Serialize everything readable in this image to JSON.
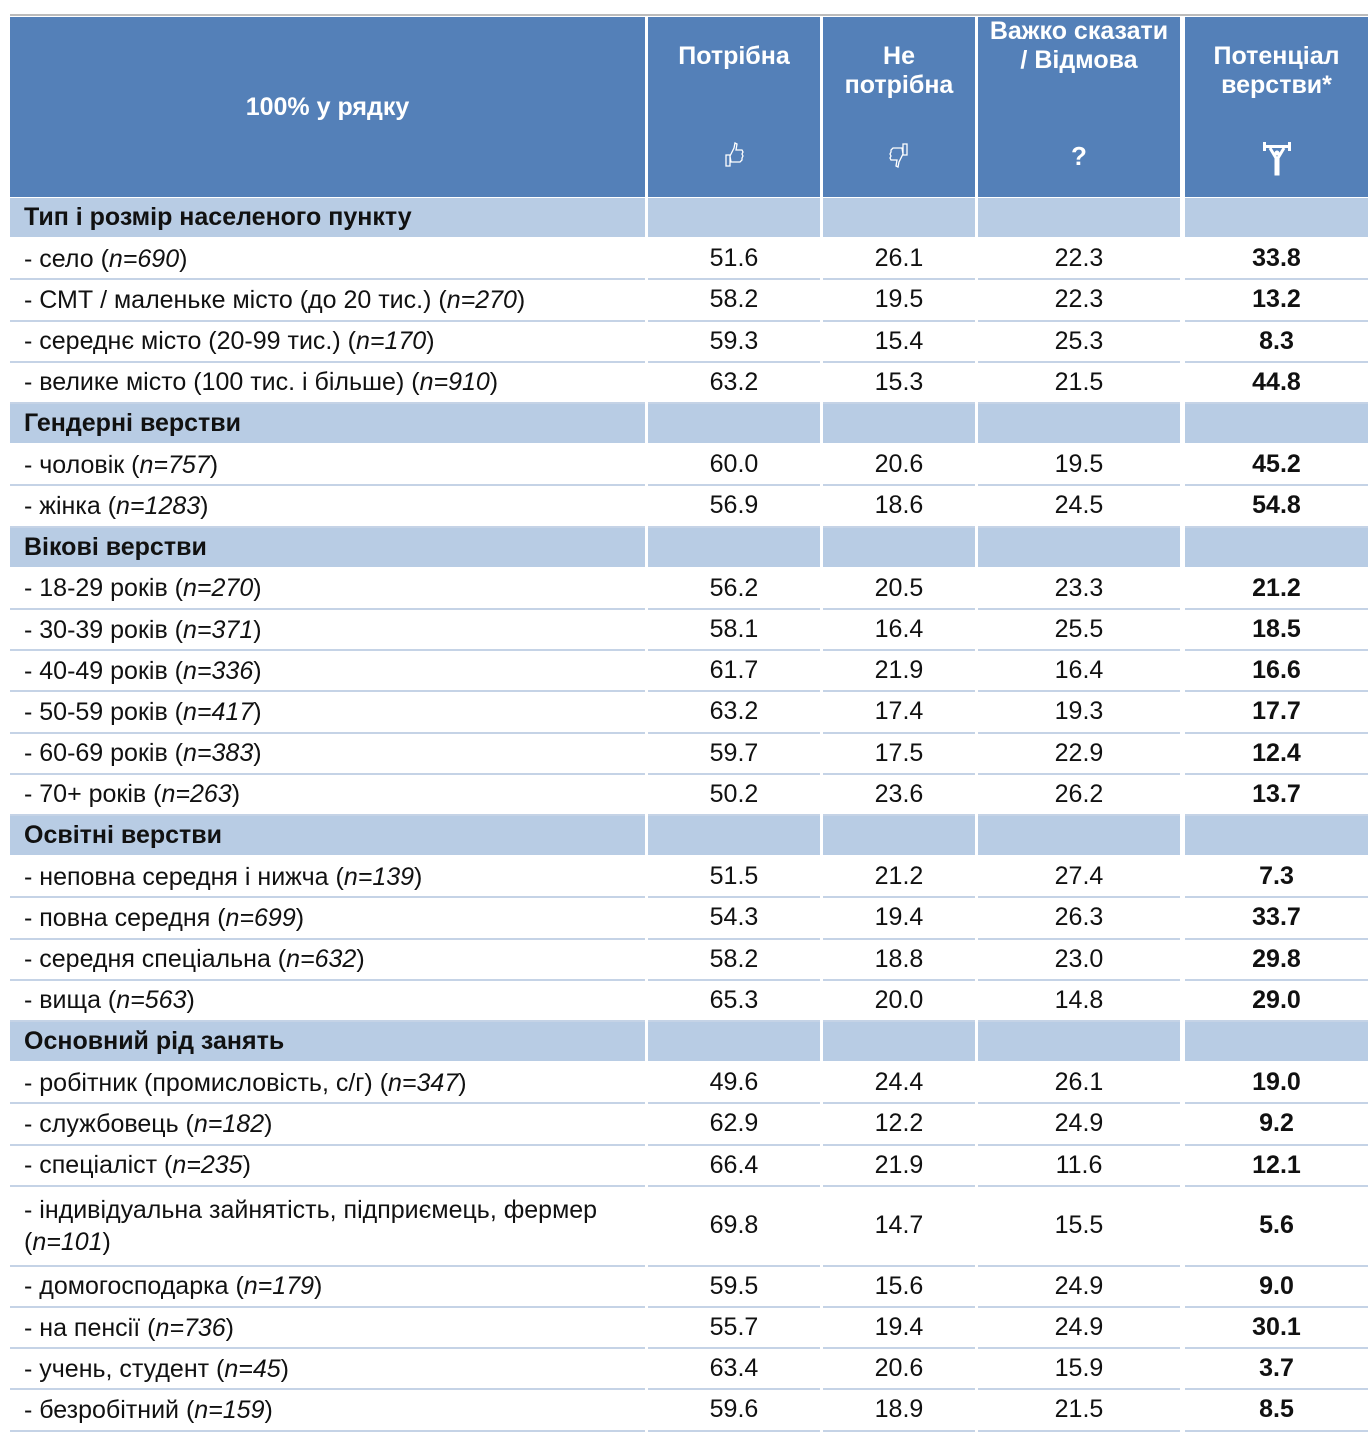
{
  "header": {
    "title": "100% у рядку",
    "columns": [
      {
        "label": "Потрібна"
      },
      {
        "label": "Не потрібна"
      },
      {
        "label": "Важко сказати / Відмова",
        "icon": "?"
      },
      {
        "label": "Потенціал верстви*"
      }
    ]
  },
  "sections": [
    {
      "title": "Тип і розмір населеного пункту",
      "rows": [
        {
          "label": [
            "- село (",
            "n=690",
            ")"
          ],
          "values": [
            "51.6",
            "26.1",
            "22.3",
            "33.8"
          ]
        },
        {
          "label": [
            "- СМТ / маленьке місто (до 20 тис.) (",
            "n=270",
            ")"
          ],
          "values": [
            "58.2",
            "19.5",
            "22.3",
            "13.2"
          ]
        },
        {
          "label": [
            "- середнє місто (20-99 тис.) (",
            "n=170",
            ")"
          ],
          "values": [
            "59.3",
            "15.4",
            "25.3",
            "8.3"
          ]
        },
        {
          "label": [
            "- велике місто (100 тис. і більше) (",
            "n=910",
            ")"
          ],
          "values": [
            "63.2",
            "15.3",
            "21.5",
            "44.8"
          ]
        }
      ]
    },
    {
      "title": "Гендерні верстви",
      "rows": [
        {
          "label": [
            "- чоловік (",
            "n=757",
            ")"
          ],
          "values": [
            "60.0",
            "20.6",
            "19.5",
            "45.2"
          ]
        },
        {
          "label": [
            "- жінка (",
            "n=1283",
            ")"
          ],
          "values": [
            "56.9",
            "18.6",
            "24.5",
            "54.8"
          ]
        }
      ]
    },
    {
      "title": "Вікові верстви",
      "rows": [
        {
          "label": [
            "- 18-29 років (",
            "n=270",
            ")"
          ],
          "values": [
            "56.2",
            "20.5",
            "23.3",
            "21.2"
          ]
        },
        {
          "label": [
            "- 30-39 років (",
            "n=371",
            ")"
          ],
          "values": [
            "58.1",
            "16.4",
            "25.5",
            "18.5"
          ]
        },
        {
          "label": [
            "- 40-49 років (",
            "n=336",
            ")"
          ],
          "values": [
            "61.7",
            "21.9",
            "16.4",
            "16.6"
          ]
        },
        {
          "label": [
            "- 50-59 років (",
            "n=417",
            ")"
          ],
          "values": [
            "63.2",
            "17.4",
            "19.3",
            "17.7"
          ]
        },
        {
          "label": [
            "- 60-69 років (",
            "n=383",
            ")"
          ],
          "values": [
            "59.7",
            "17.5",
            "22.9",
            "12.4"
          ]
        },
        {
          "label": [
            "- 70+ років (",
            "n=263",
            ")"
          ],
          "values": [
            "50.2",
            "23.6",
            "26.2",
            "13.7"
          ]
        }
      ]
    },
    {
      "title": "Освітні верстви",
      "rows": [
        {
          "label": [
            "- неповна середня і нижча (",
            "n=139",
            ")"
          ],
          "values": [
            "51.5",
            "21.2",
            "27.4",
            "7.3"
          ]
        },
        {
          "label": [
            "- повна середня (",
            "n=699",
            ")"
          ],
          "values": [
            "54.3",
            "19.4",
            "26.3",
            "33.7"
          ]
        },
        {
          "label": [
            "- середня спеціальна (",
            "n=632",
            ")"
          ],
          "values": [
            "58.2",
            "18.8",
            "23.0",
            "29.8"
          ]
        },
        {
          "label": [
            "- вища (",
            "n=563",
            ")"
          ],
          "values": [
            "65.3",
            "20.0",
            "14.8",
            "29.0"
          ]
        }
      ]
    },
    {
      "title": "Основний рід занять",
      "rows": [
        {
          "label": [
            "- робітник (промисловість, с/г) (",
            "n=347",
            ")"
          ],
          "values": [
            "49.6",
            "24.4",
            "26.1",
            "19.0"
          ]
        },
        {
          "label": [
            "- службовець (",
            "n=182",
            ")"
          ],
          "values": [
            "62.9",
            "12.2",
            "24.9",
            "9.2"
          ]
        },
        {
          "label": [
            "- спеціаліст (",
            "n=235",
            ")"
          ],
          "values": [
            "66.4",
            "21.9",
            "11.6",
            "12.1"
          ]
        },
        {
          "label": [
            "- індивідуальна зайнятість, підприємець, фермер (",
            "n=101",
            ")"
          ],
          "values": [
            "69.8",
            "14.7",
            "15.5",
            "5.6"
          ]
        },
        {
          "label": [
            "- домогосподарка (",
            "n=179",
            ")"
          ],
          "values": [
            "59.5",
            "15.6",
            "24.9",
            "9.0"
          ]
        },
        {
          "label": [
            "- на пенсії (",
            "n=736",
            ")"
          ],
          "values": [
            "55.7",
            "19.4",
            "24.9",
            "30.1"
          ]
        },
        {
          "label": [
            "- учень, студент (",
            "n=45",
            ")"
          ],
          "values": [
            "63.4",
            "20.6",
            "15.9",
            "3.7"
          ]
        },
        {
          "label": [
            "- безробітний (",
            "n=159",
            ")"
          ],
          "values": [
            "59.6",
            "18.9",
            "21.5",
            "8.5"
          ]
        }
      ]
    }
  ]
}
